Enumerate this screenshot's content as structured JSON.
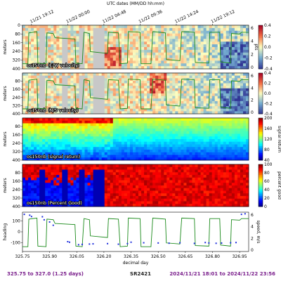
{
  "chart_data": {
    "type": "heatmap",
    "top_axis": {
      "title": "UTC dates (MM/DD hh:mm)",
      "ticks": [
        "11/21 19:12",
        "11/22 00:00",
        "11/22 04:48",
        "11/22 09:36",
        "11/22 14:24",
        "11/22 19:12"
      ],
      "tick_positions": [
        325.8,
        326.0,
        326.2,
        326.4,
        326.6,
        326.8
      ]
    },
    "xlabel": "decimal day",
    "xlim": [
      325.75,
      327.0
    ],
    "xticks": [
      "325.75",
      "325.90",
      "326.05",
      "326.20",
      "326.35",
      "326.50",
      "326.65",
      "326.80",
      "326.95"
    ],
    "panels": [
      {
        "title": "os150nb (E/W velocity)",
        "ylabel": "meters",
        "ylim": [
          400,
          0
        ],
        "yticks": [
          "0",
          "80",
          "160",
          "240",
          "320",
          "400"
        ],
        "colorbar": {
          "min": -0.4,
          "max": 0.4,
          "ticks": [
            "0.4",
            "0.2",
            "0.0",
            "-0.2",
            "-0.4"
          ],
          "label": ""
        },
        "right_axis": {
          "ticks": [
            "6",
            "4",
            "2",
            "0"
          ],
          "label": "pts"
        },
        "colormap": "diverging"
      },
      {
        "title": "os150nb (N/S velocity)",
        "ylabel": "meters",
        "ylim": [
          400,
          0
        ],
        "yticks": [
          "80",
          "160",
          "240",
          "320",
          "400"
        ],
        "colorbar": {
          "min": -0.4,
          "max": 0.4,
          "ticks": [
            "0.4",
            "0.2",
            "0.0",
            "-0.2",
            "-0.4"
          ],
          "label": ""
        },
        "right_axis": {
          "ticks": [
            "6",
            "4",
            "2",
            "0"
          ],
          "label": ""
        },
        "colormap": "diverging"
      },
      {
        "title": "os150nb (signal return)",
        "ylabel": "meters",
        "ylim": [
          400,
          0
        ],
        "yticks": [
          "80",
          "160",
          "240",
          "320",
          "400"
        ],
        "colorbar": {
          "min": 20,
          "max": 200,
          "ticks": [
            "200",
            "160",
            "120",
            "80",
            "40"
          ],
          "label": "signal return"
        },
        "colormap": "jet"
      },
      {
        "title": "os150nb (Percent Good)",
        "ylabel": "meters",
        "ylim": [
          400,
          0
        ],
        "yticks": [
          "80",
          "160",
          "240",
          "320",
          "400"
        ],
        "colorbar": {
          "min": 0,
          "max": 100,
          "ticks": [
            "100",
            "80",
            "60",
            "40",
            "20",
            "0"
          ],
          "label": "percent good"
        },
        "colormap": "jet"
      },
      {
        "title": "",
        "ylabel": "heading",
        "ylim": [
          -180,
          180
        ],
        "yticks": [
          "100",
          "0",
          "-100"
        ],
        "right_axis": {
          "ticks": [
            "6",
            "4",
            "2",
            "0"
          ],
          "label": "speed, m/s"
        },
        "colormap": "none"
      }
    ],
    "heading_series": {
      "name": "heading",
      "x": [
        325.76,
        325.79,
        325.8,
        325.86,
        325.87,
        325.9,
        325.92,
        326.0,
        326.01,
        326.06,
        326.08,
        326.12,
        326.14,
        326.22,
        326.28,
        326.33,
        326.35,
        326.42,
        326.5,
        326.56,
        326.62,
        326.7,
        326.76,
        326.78,
        326.82,
        326.85,
        326.9,
        326.93,
        326.96,
        326.98
      ],
      "values": [
        160,
        152,
        140,
        138,
        110,
        90,
        60,
        -90,
        -95,
        -118,
        -115,
        -112,
        -110,
        -108,
        -113,
        -108,
        -95,
        -100,
        -102,
        -104,
        -100,
        -106,
        -98,
        -102,
        -105,
        -103,
        -100,
        -98,
        160,
        165
      ]
    },
    "speed_series": {
      "name": "speed",
      "x": [
        325.75,
        325.78,
        325.785,
        325.83,
        325.835,
        325.88,
        325.885,
        325.92,
        325.93,
        326.04,
        326.045,
        326.08,
        326.09,
        326.12,
        326.125,
        326.22,
        326.225,
        326.28,
        326.29,
        326.33,
        326.335,
        326.4,
        326.405,
        326.46,
        326.47,
        326.54,
        326.545,
        326.62,
        326.63,
        326.7,
        326.705,
        326.78,
        326.785,
        326.84,
        326.845,
        326.9,
        326.905,
        326.95,
        326.96,
        327.0
      ],
      "values": [
        0.5,
        0.5,
        5.6,
        5.8,
        0.6,
        0.5,
        5.6,
        5.5,
        4.8,
        4.6,
        0.6,
        0.5,
        5.7,
        5.5,
        2.5,
        2.2,
        5.7,
        5.6,
        0.5,
        0.6,
        5.8,
        5.7,
        0.5,
        0.5,
        5.8,
        5.6,
        1.2,
        1.0,
        5.8,
        5.7,
        0.7,
        0.6,
        5.7,
        5.7,
        0.8,
        0.6,
        5.5,
        5.4,
        5.7,
        5.7
      ]
    },
    "range_label": "325.75 to 327.0 (1.25 days)",
    "instrument": "SR2421",
    "date_range": "2024/11/21 18:01 to 2024/11/22 23:56"
  }
}
